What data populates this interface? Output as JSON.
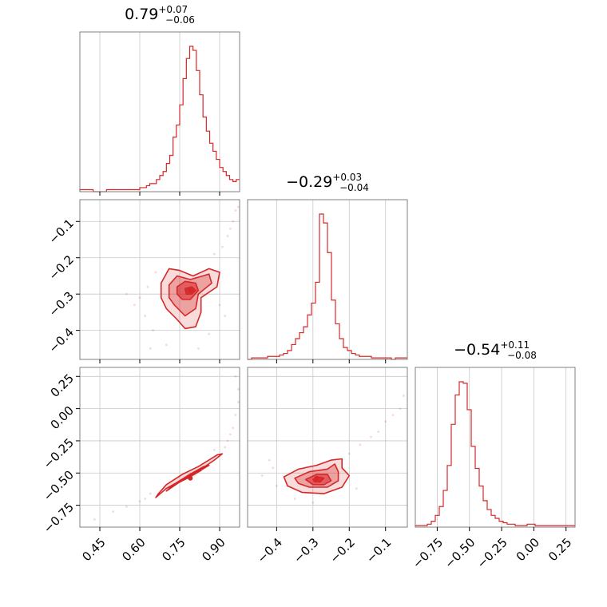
{
  "colors": {
    "accent": "#d62728",
    "grid": "#c8c8c8",
    "frame": "#808080"
  },
  "chart_data": {
    "type": "corner",
    "parameters": [
      {
        "title": {
          "median": "0.79",
          "plus": "+0.07",
          "minus": "−0.06"
        },
        "range": [
          0.375,
          0.975
        ],
        "ticks": [
          0.45,
          0.6,
          0.75,
          0.9
        ],
        "tick_labels": [
          "0.45",
          "0.60",
          "0.75",
          "0.90"
        ],
        "histogram": {
          "values": [
            1,
            1,
            1,
            1,
            0,
            0,
            0,
            0,
            1,
            1,
            1,
            1,
            1,
            1,
            1,
            1,
            1,
            1,
            2,
            2,
            3,
            4,
            4,
            6,
            8,
            10,
            14,
            18,
            27,
            33,
            43,
            56,
            66,
            72,
            70,
            60,
            48,
            37,
            30,
            24,
            20,
            16,
            12,
            10,
            8,
            6,
            5,
            6
          ],
          "vmax": 72
        }
      },
      {
        "title": {
          "median": "−0.29",
          "plus": "+0.03",
          "minus": "−0.04"
        },
        "range": [
          -0.48,
          -0.04
        ],
        "ticks": [
          -0.4,
          -0.3,
          -0.2,
          -0.1
        ],
        "tick_labels": [
          "−0.4",
          "−0.3",
          "−0.2",
          "−0.1"
        ],
        "histogram": {
          "values": [
            0,
            1,
            1,
            1,
            1,
            2,
            2,
            2,
            3,
            4,
            6,
            10,
            14,
            18,
            22,
            30,
            38,
            52,
            98,
            92,
            72,
            40,
            24,
            14,
            8,
            6,
            4,
            3,
            2,
            2,
            2,
            1,
            1,
            1,
            1,
            1,
            0,
            1,
            1,
            1
          ],
          "vmax": 98
        }
      },
      {
        "title": {
          "median": "−0.54",
          "plus": "+0.11",
          "minus": "−0.08"
        },
        "range": [
          -0.92,
          0.32
        ],
        "ticks": [
          -0.75,
          -0.5,
          -0.25,
          0.0,
          0.25
        ],
        "tick_labels": [
          "−0.75",
          "−0.50",
          "−0.25",
          "0.00",
          "0.25"
        ],
        "histogram": {
          "values": [
            1,
            1,
            1,
            2,
            4,
            8,
            14,
            25,
            42,
            70,
            90,
            99,
            98,
            80,
            55,
            40,
            28,
            18,
            12,
            8,
            6,
            4,
            3,
            2,
            2,
            1,
            1,
            1,
            2,
            2,
            1,
            1,
            1,
            1,
            1,
            1,
            1,
            1,
            1,
            1
          ],
          "vmax": 99
        }
      }
    ],
    "pairs": [
      {
        "x_param": 0,
        "y_param": 1,
        "center": [
          0.79,
          -0.29
        ],
        "contours": [
          [
            [
              0.68,
              -0.27
            ],
            [
              0.71,
              -0.23
            ],
            [
              0.75,
              -0.235
            ],
            [
              0.8,
              -0.25
            ],
            [
              0.86,
              -0.23
            ],
            [
              0.9,
              -0.24
            ],
            [
              0.89,
              -0.28
            ],
            [
              0.83,
              -0.31
            ],
            [
              0.83,
              -0.35
            ],
            [
              0.81,
              -0.39
            ],
            [
              0.77,
              -0.395
            ],
            [
              0.74,
              -0.37
            ],
            [
              0.7,
              -0.34
            ],
            [
              0.68,
              -0.31
            ]
          ],
          [
            [
              0.71,
              -0.275
            ],
            [
              0.74,
              -0.25
            ],
            [
              0.79,
              -0.26
            ],
            [
              0.86,
              -0.245
            ],
            [
              0.87,
              -0.27
            ],
            [
              0.82,
              -0.3
            ],
            [
              0.81,
              -0.34
            ],
            [
              0.77,
              -0.36
            ],
            [
              0.73,
              -0.33
            ],
            [
              0.71,
              -0.31
            ]
          ],
          [
            [
              0.74,
              -0.28
            ],
            [
              0.77,
              -0.265
            ],
            [
              0.81,
              -0.27
            ],
            [
              0.82,
              -0.29
            ],
            [
              0.79,
              -0.315
            ],
            [
              0.76,
              -0.315
            ],
            [
              0.74,
              -0.3
            ]
          ],
          [
            [
              0.77,
              -0.285
            ],
            [
              0.795,
              -0.28
            ],
            [
              0.81,
              -0.29
            ],
            [
              0.795,
              -0.3
            ],
            [
              0.775,
              -0.3
            ]
          ]
        ],
        "scatter": [
          [
            0.6,
            -0.31
          ],
          [
            0.62,
            -0.36
          ],
          [
            0.63,
            -0.28
          ],
          [
            0.58,
            -0.33
          ],
          [
            0.65,
            -0.4
          ],
          [
            0.66,
            -0.24
          ],
          [
            0.88,
            -0.19
          ],
          [
            0.91,
            -0.17
          ],
          [
            0.93,
            -0.14
          ],
          [
            0.95,
            -0.1
          ],
          [
            0.96,
            -0.07
          ],
          [
            0.92,
            -0.36
          ],
          [
            0.9,
            -0.33
          ],
          [
            0.86,
            -0.41
          ],
          [
            0.55,
            -0.3
          ],
          [
            0.64,
            -0.45
          ],
          [
            0.7,
            -0.44
          ],
          [
            0.82,
            -0.45
          ],
          [
            0.97,
            -0.06
          ],
          [
            0.94,
            -0.12
          ]
        ]
      },
      {
        "x_param": 0,
        "y_param": 2,
        "center": [
          0.79,
          -0.54
        ],
        "contours": [
          [
            [
              0.66,
              -0.69
            ],
            [
              0.7,
              -0.62
            ],
            [
              0.76,
              -0.55
            ],
            [
              0.83,
              -0.47
            ],
            [
              0.88,
              -0.4
            ],
            [
              0.91,
              -0.35
            ],
            [
              0.89,
              -0.36
            ],
            [
              0.82,
              -0.45
            ],
            [
              0.76,
              -0.51
            ],
            [
              0.7,
              -0.59
            ],
            [
              0.67,
              -0.66
            ]
          ],
          [
            [
              0.7,
              -0.64
            ],
            [
              0.75,
              -0.57
            ],
            [
              0.82,
              -0.49
            ],
            [
              0.86,
              -0.44
            ],
            [
              0.84,
              -0.45
            ],
            [
              0.78,
              -0.52
            ],
            [
              0.72,
              -0.6
            ]
          ],
          [
            [
              0.73,
              -0.59
            ],
            [
              0.78,
              -0.54
            ],
            [
              0.83,
              -0.48
            ],
            [
              0.8,
              -0.5
            ],
            [
              0.75,
              -0.56
            ]
          ]
        ],
        "scatter": [
          [
            0.43,
            -0.86
          ],
          [
            0.5,
            -0.8
          ],
          [
            0.55,
            -0.76
          ],
          [
            0.6,
            -0.72
          ],
          [
            0.62,
            -0.7
          ],
          [
            0.64,
            -0.66
          ],
          [
            0.93,
            -0.25
          ],
          [
            0.95,
            -0.15
          ],
          [
            0.96,
            -0.05
          ],
          [
            0.97,
            0.05
          ],
          [
            0.97,
            0.15
          ],
          [
            0.96,
            0.25
          ],
          [
            0.92,
            -0.3
          ],
          [
            0.88,
            -0.32
          ],
          [
            0.94,
            -0.2
          ]
        ]
      },
      {
        "x_param": 1,
        "y_param": 2,
        "center": [
          -0.29,
          -0.54
        ],
        "contours": [
          [
            [
              -0.38,
              -0.53
            ],
            [
              -0.34,
              -0.47
            ],
            [
              -0.29,
              -0.44
            ],
            [
              -0.25,
              -0.4
            ],
            [
              -0.22,
              -0.39
            ],
            [
              -0.22,
              -0.46
            ],
            [
              -0.2,
              -0.52
            ],
            [
              -0.22,
              -0.61
            ],
            [
              -0.27,
              -0.66
            ],
            [
              -0.33,
              -0.65
            ],
            [
              -0.37,
              -0.6
            ]
          ],
          [
            [
              -0.35,
              -0.54
            ],
            [
              -0.31,
              -0.49
            ],
            [
              -0.26,
              -0.47
            ],
            [
              -0.24,
              -0.43
            ],
            [
              -0.23,
              -0.49
            ],
            [
              -0.23,
              -0.56
            ],
            [
              -0.26,
              -0.61
            ],
            [
              -0.31,
              -0.61
            ],
            [
              -0.34,
              -0.58
            ]
          ],
          [
            [
              -0.32,
              -0.55
            ],
            [
              -0.29,
              -0.51
            ],
            [
              -0.26,
              -0.51
            ],
            [
              -0.25,
              -0.56
            ],
            [
              -0.27,
              -0.59
            ],
            [
              -0.3,
              -0.59
            ]
          ],
          [
            [
              -0.3,
              -0.55
            ],
            [
              -0.285,
              -0.53
            ],
            [
              -0.27,
              -0.54
            ],
            [
              -0.28,
              -0.57
            ],
            [
              -0.295,
              -0.57
            ]
          ]
        ],
        "scatter": [
          [
            -0.42,
            -0.4
          ],
          [
            -0.41,
            -0.46
          ],
          [
            -0.4,
            -0.6
          ],
          [
            -0.35,
            -0.7
          ],
          [
            -0.3,
            -0.73
          ],
          [
            -0.2,
            -0.35
          ],
          [
            -0.17,
            -0.28
          ],
          [
            -0.14,
            -0.22
          ],
          [
            -0.12,
            -0.18
          ],
          [
            -0.1,
            -0.1
          ],
          [
            -0.08,
            -0.05
          ],
          [
            -0.06,
            0.0
          ],
          [
            -0.05,
            0.1
          ],
          [
            -0.18,
            -0.62
          ],
          [
            -0.44,
            -0.52
          ]
        ]
      }
    ]
  }
}
